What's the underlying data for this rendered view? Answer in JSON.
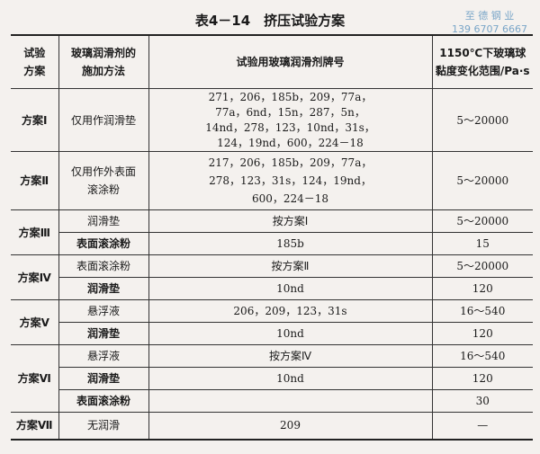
{
  "title": "表4－14　挤压试验方案",
  "watermark": {
    "line1": "至 德 钢 业",
    "line2": "139 6707 6667"
  },
  "headers": [
    "试验方案",
    "玻璃润滑剂的施加方法",
    "试验用玻璃润滑剂牌号",
    "1150℃下玻璃球黏度变化范围/Pa·s"
  ],
  "rows": [
    {
      "scheme": "方案Ⅰ",
      "method": "仅用作润滑垫",
      "grades": "271，206，185b，209，77a，\n77a，6nd，15n，287，5n，\n14nd，278，123，10nd，31s，\n124，19nd，600，224－18",
      "viscosity": "5～20000"
    },
    {
      "scheme": "方案Ⅱ",
      "method": "仅用作外表面\n滚涂粉",
      "grades": "217，206，185b，209，77a，\n278，123，31s，124，19nd，\n600，224－18",
      "viscosity": "5～20000"
    },
    {
      "scheme": "方案Ⅲ",
      "method": "润滑垫",
      "grades": "按方案Ⅰ",
      "viscosity": "5～20000"
    },
    {
      "method": "表面滚涂粉",
      "grades": "185b",
      "viscosity": "15"
    },
    {
      "scheme": "方案Ⅳ",
      "method": "表面滚涂粉",
      "grades": "按方案Ⅱ",
      "viscosity": "5～20000"
    },
    {
      "method": "润滑垫",
      "grades": "10nd",
      "viscosity": "120"
    },
    {
      "scheme": "方案Ⅴ",
      "method": "悬浮液",
      "grades": "206，209，123，31s",
      "viscosity": "16～540"
    },
    {
      "method": "润滑垫",
      "grades": "10nd",
      "viscosity": "120"
    },
    {
      "scheme": "方案Ⅵ",
      "method": "悬浮液",
      "grades": "按方案Ⅳ",
      "viscosity": "16～540"
    },
    {
      "method": "润滑垫",
      "grades": "10nd",
      "viscosity": "120"
    },
    {
      "method": "表面滚涂粉",
      "grades": "",
      "viscosity": "30"
    },
    {
      "scheme": "方案Ⅶ",
      "method": "无润滑",
      "grades": "209",
      "viscosity": "—"
    }
  ]
}
